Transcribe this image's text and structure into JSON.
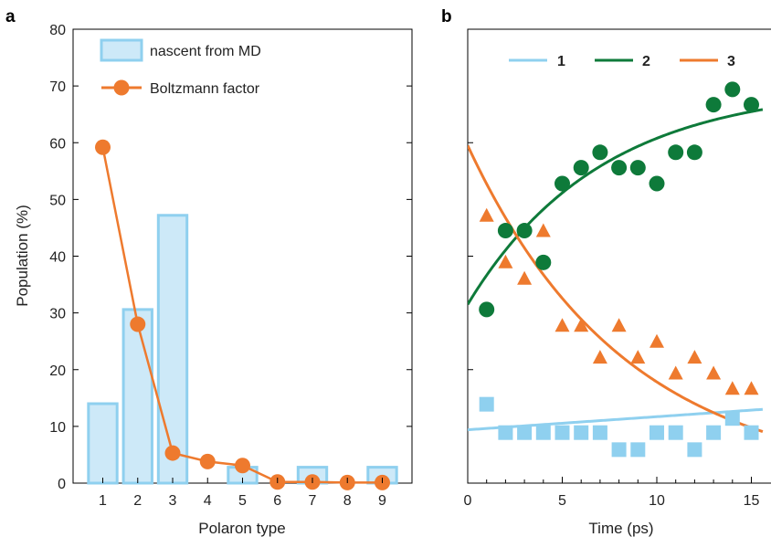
{
  "colors": {
    "bar_fill": "#cde9f8",
    "bar_stroke": "#8fd0ef",
    "orange": "#ee7a2e",
    "green": "#0e7a3a",
    "light_blue": "#8fd0ef",
    "axis": "#000000"
  },
  "chart_data": [
    {
      "panel": "a",
      "type": "bar",
      "xlabel": "Polaron type",
      "ylabel": "Population (%)",
      "ylim": [
        0,
        80
      ],
      "yticks": [
        0,
        10,
        20,
        30,
        40,
        50,
        60,
        70,
        80
      ],
      "categories": [
        "1",
        "2",
        "3",
        "4",
        "5",
        "6",
        "7",
        "8",
        "9"
      ],
      "series": [
        {
          "name": "nascent from MD",
          "kind": "bar",
          "values": [
            14,
            30.6,
            47.2,
            0,
            2.8,
            0,
            2.8,
            0,
            2.8
          ]
        },
        {
          "name": "Boltzmann factor",
          "kind": "line-marker",
          "values": [
            59.2,
            28,
            5.3,
            3.8,
            3.1,
            0.2,
            0.2,
            0.1,
            0.1
          ]
        }
      ],
      "legend": "top-left"
    },
    {
      "panel": "b",
      "type": "scatter",
      "xlabel": "Time (ps)",
      "xlim": [
        0,
        15.6
      ],
      "xticks": [
        0,
        5,
        10,
        15
      ],
      "ylim": [
        0,
        80
      ],
      "legend": "top",
      "series": [
        {
          "name": "1",
          "marker": "square",
          "points": [
            [
              1,
              13.9
            ],
            [
              2,
              8.9
            ],
            [
              3,
              8.9
            ],
            [
              4,
              8.9
            ],
            [
              5,
              8.9
            ],
            [
              6,
              8.9
            ],
            [
              7,
              8.9
            ],
            [
              8,
              5.9
            ],
            [
              9,
              5.9
            ],
            [
              10,
              8.9
            ],
            [
              11,
              8.9
            ],
            [
              12,
              5.9
            ],
            [
              13,
              8.9
            ],
            [
              14,
              11.4
            ],
            [
              15,
              8.9
            ]
          ],
          "fit": {
            "type": "linear",
            "y0": 9.4,
            "y_end": 13.0
          }
        },
        {
          "name": "2",
          "marker": "circle",
          "points": [
            [
              1,
              30.6
            ],
            [
              2,
              44.5
            ],
            [
              3,
              44.5
            ],
            [
              4,
              38.9
            ],
            [
              5,
              52.8
            ],
            [
              6,
              55.6
            ],
            [
              7,
              58.3
            ],
            [
              8,
              55.6
            ],
            [
              9,
              55.6
            ],
            [
              10,
              52.8
            ],
            [
              11,
              58.3
            ],
            [
              12,
              58.3
            ],
            [
              13,
              66.7
            ],
            [
              14,
              69.4
            ],
            [
              15,
              66.7
            ]
          ],
          "fit": {
            "type": "exp-rise",
            "y0": 31.5,
            "yinf": 70,
            "tau": 7.0
          }
        },
        {
          "name": "3",
          "marker": "triangle",
          "points": [
            [
              1,
              47.2
            ],
            [
              2,
              39
            ],
            [
              3,
              36.1
            ],
            [
              4,
              44.5
            ],
            [
              5,
              27.8
            ],
            [
              6,
              27.8
            ],
            [
              7,
              22.2
            ],
            [
              8,
              27.8
            ],
            [
              9,
              22.2
            ],
            [
              10,
              25
            ],
            [
              11,
              19.4
            ],
            [
              12,
              22.2
            ],
            [
              13,
              19.4
            ],
            [
              14,
              16.7
            ],
            [
              15,
              16.7
            ]
          ],
          "fit": {
            "type": "exp-decay",
            "y0": 59.5,
            "yinf": 0,
            "tau": 8.3
          }
        }
      ]
    }
  ]
}
